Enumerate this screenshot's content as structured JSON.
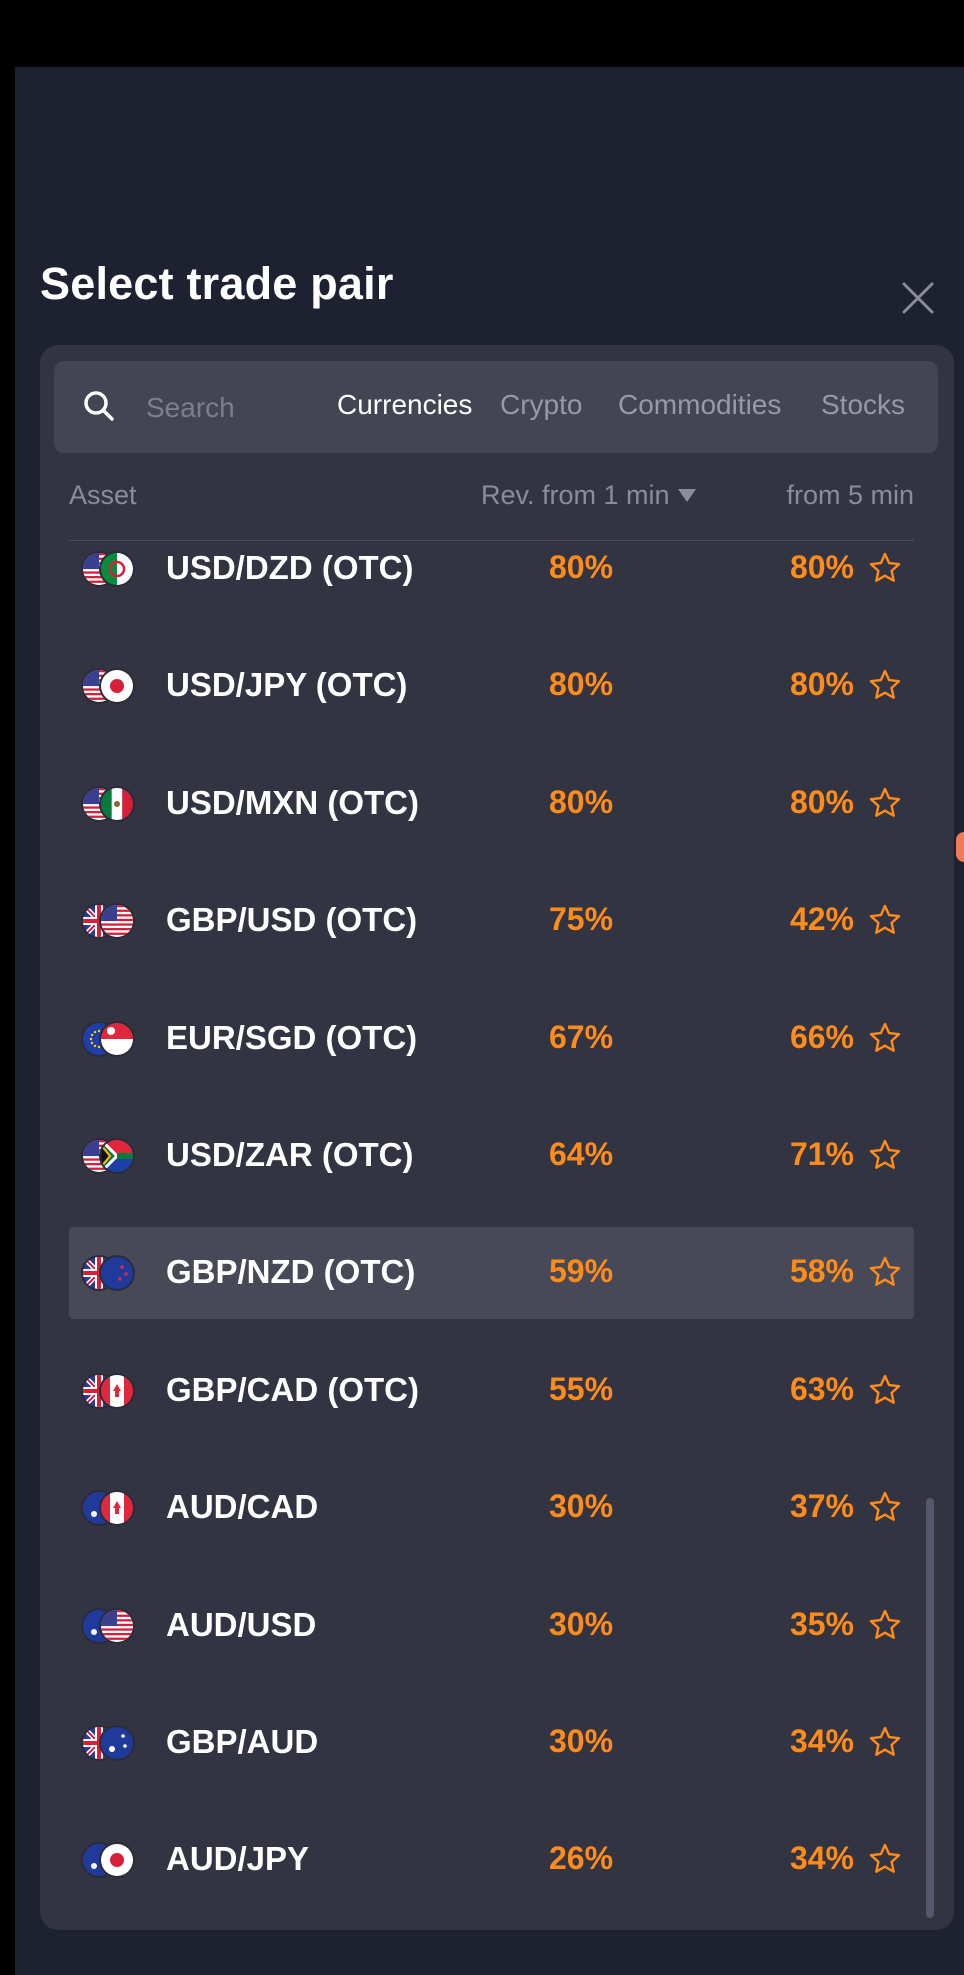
{
  "title": "Select trade pair",
  "search": {
    "placeholder": "Search"
  },
  "tabs": [
    {
      "label": "Currencies",
      "active": true
    },
    {
      "label": "Crypto",
      "active": false
    },
    {
      "label": "Commodities",
      "active": false
    },
    {
      "label": "Stocks",
      "active": false
    }
  ],
  "columns": {
    "asset": "Asset",
    "rev1": "Rev. from 1 min",
    "rev5": "from 5 min"
  },
  "colors": {
    "background": "#1e2130",
    "panel": "#323442",
    "accent": "#ff8c1a",
    "selected_row": "#474956"
  },
  "rows": [
    {
      "name": "USD/DZD (OTC)",
      "rev1": "80%",
      "rev5": "80%",
      "flags": [
        "us",
        "dz"
      ],
      "selected": false
    },
    {
      "name": "USD/JPY (OTC)",
      "rev1": "80%",
      "rev5": "80%",
      "flags": [
        "us",
        "jp"
      ],
      "selected": false
    },
    {
      "name": "USD/MXN (OTC)",
      "rev1": "80%",
      "rev5": "80%",
      "flags": [
        "us",
        "mx"
      ],
      "selected": false
    },
    {
      "name": "GBP/USD (OTC)",
      "rev1": "75%",
      "rev5": "42%",
      "flags": [
        "gb",
        "us"
      ],
      "selected": false
    },
    {
      "name": "EUR/SGD (OTC)",
      "rev1": "67%",
      "rev5": "66%",
      "flags": [
        "eu",
        "sg"
      ],
      "selected": false
    },
    {
      "name": "USD/ZAR (OTC)",
      "rev1": "64%",
      "rev5": "71%",
      "flags": [
        "us",
        "za"
      ],
      "selected": false
    },
    {
      "name": "GBP/NZD (OTC)",
      "rev1": "59%",
      "rev5": "58%",
      "flags": [
        "gb",
        "nz"
      ],
      "selected": true
    },
    {
      "name": "GBP/CAD (OTC)",
      "rev1": "55%",
      "rev5": "63%",
      "flags": [
        "gb",
        "ca"
      ],
      "selected": false
    },
    {
      "name": "AUD/CAD",
      "rev1": "30%",
      "rev5": "37%",
      "flags": [
        "au",
        "ca"
      ],
      "selected": false
    },
    {
      "name": "AUD/USD",
      "rev1": "30%",
      "rev5": "35%",
      "flags": [
        "au",
        "us"
      ],
      "selected": false
    },
    {
      "name": "GBP/AUD",
      "rev1": "30%",
      "rev5": "34%",
      "flags": [
        "gb",
        "au"
      ],
      "selected": false
    },
    {
      "name": "AUD/JPY",
      "rev1": "26%",
      "rev5": "34%",
      "flags": [
        "au",
        "jp"
      ],
      "selected": false
    }
  ],
  "icons": {
    "search": "search-icon",
    "close": "close-icon",
    "favorite": "star-outline-icon",
    "sort": "sort-down-icon"
  }
}
